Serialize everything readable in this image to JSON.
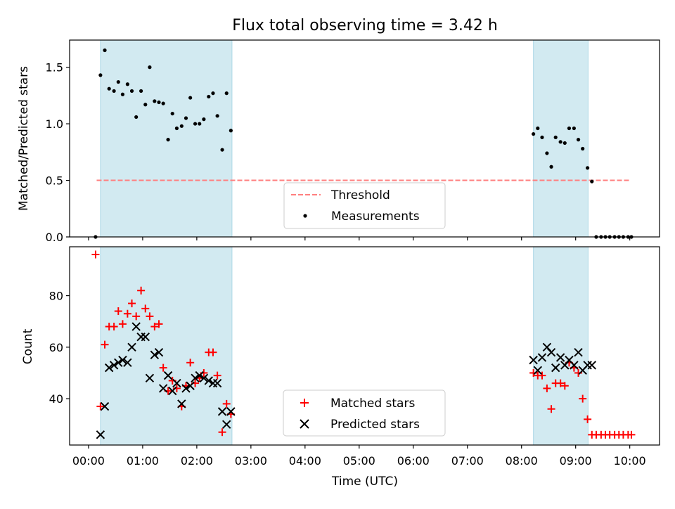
{
  "figure": {
    "title": "Flux total observing time = 3.42 h",
    "xlabel": "Time (UTC)"
  },
  "colors": {
    "band_fill": "#add8e6",
    "measurement": "#000000",
    "threshold": "#ff7f7f",
    "matched": "#ff0000",
    "predicted": "#000000"
  },
  "chart_data": [
    {
      "type": "scatter",
      "panel": "top",
      "ylabel": "Matched/Predicted stars",
      "xlim_hours": [
        -0.35,
        10.55
      ],
      "ylim": [
        0.0,
        1.74
      ],
      "xticks": [
        0,
        1,
        2,
        3,
        4,
        5,
        6,
        7,
        8,
        9,
        10
      ],
      "yticks": [
        0.0,
        0.5,
        1.0,
        1.5
      ],
      "ytick_labels": [
        "0.0",
        "0.5",
        "1.0",
        "1.5"
      ],
      "shaded_intervals_hours": [
        [
          0.22,
          2.65
        ],
        [
          8.22,
          9.23
        ]
      ],
      "threshold": {
        "name": "Threshold",
        "y": 0.5,
        "x_range_hours": [
          0.15,
          10.0
        ],
        "style": "dashed"
      },
      "legend": {
        "placement": "lower center",
        "entries": [
          "Threshold",
          "Measurements"
        ]
      },
      "series": [
        {
          "name": "Measurements",
          "marker": "dot",
          "x_hours": [
            0.13,
            0.22,
            0.3,
            0.38,
            0.47,
            0.55,
            0.63,
            0.72,
            0.8,
            0.88,
            0.97,
            1.05,
            1.13,
            1.22,
            1.3,
            1.38,
            1.47,
            1.55,
            1.63,
            1.72,
            1.8,
            1.88,
            1.97,
            2.05,
            2.13,
            2.22,
            2.3,
            2.38,
            2.47,
            2.55,
            2.63,
            8.22,
            8.3,
            8.38,
            8.47,
            8.55,
            8.63,
            8.72,
            8.8,
            8.88,
            8.97,
            9.05,
            9.13,
            9.22,
            9.3,
            9.38,
            9.47,
            9.55,
            9.63,
            9.72,
            9.8,
            9.88,
            9.97,
            10.03
          ],
          "y": [
            0.0,
            1.43,
            1.65,
            1.31,
            1.29,
            1.37,
            1.26,
            1.35,
            1.29,
            1.06,
            1.29,
            1.17,
            1.5,
            1.2,
            1.19,
            1.18,
            0.86,
            1.09,
            0.96,
            0.98,
            1.05,
            1.23,
            1.0,
            1.0,
            1.04,
            1.24,
            1.27,
            1.07,
            0.77,
            1.27,
            0.94,
            0.91,
            0.96,
            0.88,
            0.74,
            0.62,
            0.88,
            0.84,
            0.83,
            0.96,
            0.96,
            0.86,
            0.78,
            0.61,
            0.49,
            0.0,
            0.0,
            0.0,
            0.0,
            0.0,
            0.0,
            0.0,
            0.0,
            0.0
          ]
        }
      ]
    },
    {
      "type": "scatter",
      "panel": "bottom",
      "ylabel": "Count",
      "xlim_hours": [
        -0.35,
        10.55
      ],
      "ylim": [
        22,
        99
      ],
      "xticks": [
        0,
        1,
        2,
        3,
        4,
        5,
        6,
        7,
        8,
        9,
        10
      ],
      "xtick_labels": [
        "00:00",
        "01:00",
        "02:00",
        "03:00",
        "04:00",
        "05:00",
        "06:00",
        "07:00",
        "08:00",
        "09:00",
        "10:00"
      ],
      "yticks": [
        40,
        60,
        80
      ],
      "ytick_labels": [
        "40",
        "60",
        "80"
      ],
      "shaded_intervals_hours": [
        [
          0.22,
          2.65
        ],
        [
          8.22,
          9.23
        ]
      ],
      "legend": {
        "placement": "lower center",
        "entries": [
          "Matched stars",
          "Predicted stars"
        ]
      },
      "series": [
        {
          "name": "Matched stars",
          "marker": "plus",
          "x_hours": [
            0.13,
            0.22,
            0.3,
            0.38,
            0.47,
            0.55,
            0.63,
            0.72,
            0.8,
            0.88,
            0.97,
            1.05,
            1.13,
            1.22,
            1.3,
            1.38,
            1.47,
            1.55,
            1.63,
            1.72,
            1.8,
            1.88,
            1.97,
            2.05,
            2.13,
            2.22,
            2.3,
            2.38,
            2.47,
            2.55,
            2.63,
            8.22,
            8.3,
            8.38,
            8.47,
            8.55,
            8.63,
            8.72,
            8.8,
            8.88,
            8.97,
            9.05,
            9.13,
            9.22,
            9.3,
            9.38,
            9.47,
            9.55,
            9.63,
            9.72,
            9.8,
            9.88,
            9.97,
            10.03
          ],
          "y": [
            96,
            37,
            61,
            68,
            68,
            74,
            69,
            73,
            77,
            72,
            82,
            75,
            72,
            68,
            69,
            52,
            43,
            47,
            44,
            37,
            45,
            54,
            46,
            48,
            50,
            58,
            58,
            49,
            27,
            38,
            34,
            50,
            49,
            49,
            44,
            36,
            46,
            46,
            45,
            54,
            52,
            50,
            40,
            32,
            26,
            26,
            26,
            26,
            26,
            26,
            26,
            26,
            26,
            26
          ]
        },
        {
          "name": "Predicted stars",
          "marker": "x",
          "x_hours": [
            0.22,
            0.3,
            0.38,
            0.47,
            0.55,
            0.63,
            0.72,
            0.8,
            0.88,
            0.97,
            1.05,
            1.13,
            1.22,
            1.3,
            1.38,
            1.47,
            1.55,
            1.63,
            1.72,
            1.8,
            1.88,
            1.97,
            2.05,
            2.13,
            2.22,
            2.3,
            2.38,
            2.47,
            2.55,
            2.63,
            8.22,
            8.3,
            8.38,
            8.47,
            8.55,
            8.63,
            8.72,
            8.8,
            8.88,
            8.97,
            9.05,
            9.13,
            9.22,
            9.3
          ],
          "y": [
            26,
            37,
            52,
            53,
            54,
            55,
            54,
            60,
            68,
            64,
            64,
            48,
            57,
            58,
            44,
            49,
            43,
            46,
            38,
            44,
            45,
            48,
            49,
            48,
            47,
            46,
            46,
            35,
            30,
            35,
            55,
            51,
            56,
            60,
            58,
            52,
            56,
            53,
            55,
            53,
            58,
            51,
            53,
            53
          ]
        }
      ]
    }
  ]
}
